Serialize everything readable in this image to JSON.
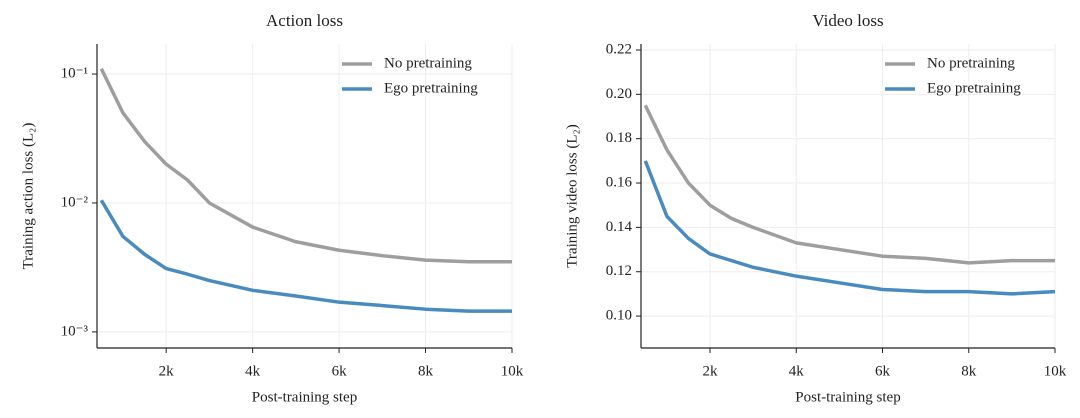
{
  "chart_data": [
    {
      "type": "line",
      "title": "Action loss",
      "xlabel": "Post-training step",
      "ylabel": "Training action loss (L₂)",
      "log_y": true,
      "grid": true,
      "legend": "upper right",
      "xlim": [
        400,
        10000
      ],
      "ylim": [
        0.00075,
        0.171
      ],
      "xticks": [
        {
          "value": 2000,
          "label": "2k"
        },
        {
          "value": 4000,
          "label": "4k"
        },
        {
          "value": 6000,
          "label": "6k"
        },
        {
          "value": 8000,
          "label": "8k"
        },
        {
          "value": 10000,
          "label": "10k"
        }
      ],
      "yticks": [
        {
          "value": 0.001,
          "label": "10⁻³"
        },
        {
          "value": 0.01,
          "label": "10⁻²"
        },
        {
          "value": 0.1,
          "label": "10⁻¹"
        }
      ],
      "x": [
        500,
        1000,
        1500,
        2000,
        2500,
        3000,
        4000,
        5000,
        6000,
        7000,
        8000,
        9000,
        10000
      ],
      "series": [
        {
          "name": "No pretraining",
          "color": "#9e9e9e",
          "values": [
            0.11,
            0.05,
            0.03,
            0.02,
            0.015,
            0.01,
            0.0065,
            0.005,
            0.0043,
            0.0039,
            0.0036,
            0.0035,
            0.0035
          ]
        },
        {
          "name": "Ego pretraining",
          "color": "#4a8bbf",
          "values": [
            0.0105,
            0.0055,
            0.004,
            0.0031,
            0.0028,
            0.0025,
            0.0021,
            0.0019,
            0.0017,
            0.0016,
            0.0015,
            0.00145,
            0.00145
          ]
        }
      ]
    },
    {
      "type": "line",
      "title": "Video loss",
      "xlabel": "Post-training step",
      "ylabel": "Training video loss (L₂)",
      "log_y": false,
      "grid": true,
      "legend": "upper right",
      "xlim": [
        400,
        10000
      ],
      "ylim": [
        0.0856,
        0.2227
      ],
      "xticks": [
        {
          "value": 2000,
          "label": "2k"
        },
        {
          "value": 4000,
          "label": "4k"
        },
        {
          "value": 6000,
          "label": "6k"
        },
        {
          "value": 8000,
          "label": "8k"
        },
        {
          "value": 10000,
          "label": "10k"
        }
      ],
      "yticks": [
        {
          "value": 0.1,
          "label": "0.10"
        },
        0.12,
        0.14,
        0.16,
        0.18,
        {
          "value": 0.2,
          "label": "0.20"
        },
        0.22
      ],
      "x": [
        500,
        1000,
        1500,
        2000,
        2500,
        3000,
        4000,
        5000,
        6000,
        7000,
        8000,
        9000,
        10000
      ],
      "series": [
        {
          "name": "No pretraining",
          "color": "#9e9e9e",
          "values": [
            0.195,
            0.175,
            0.16,
            0.15,
            0.144,
            0.14,
            0.133,
            0.13,
            0.127,
            0.126,
            0.124,
            0.125,
            0.125
          ]
        },
        {
          "name": "Ego pretraining",
          "color": "#4a8bbf",
          "values": [
            0.17,
            0.145,
            0.135,
            0.128,
            0.125,
            0.122,
            0.118,
            0.115,
            0.112,
            0.111,
            0.111,
            0.11,
            0.111
          ]
        }
      ]
    }
  ]
}
